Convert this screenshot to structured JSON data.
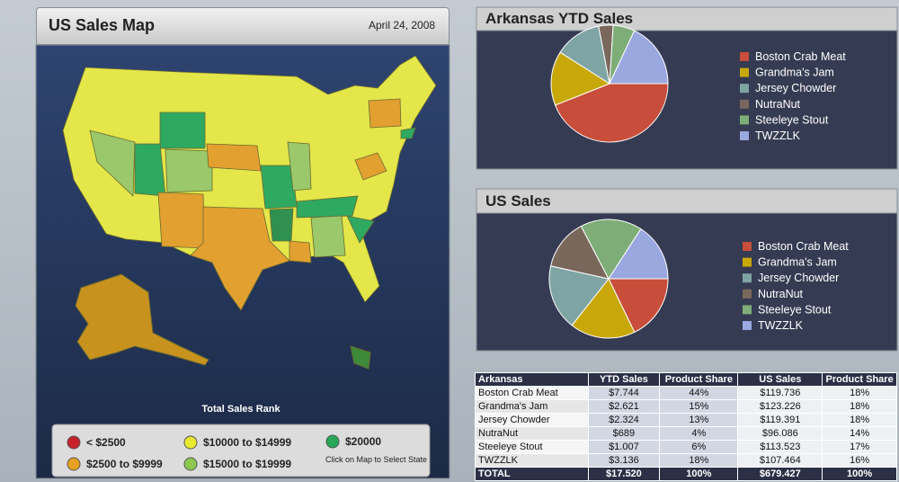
{
  "map_panel": {
    "title": "US Sales Map",
    "date": "April 24, 2008",
    "legend_title": "Total Sales Rank",
    "legend": [
      {
        "label": "< $2500",
        "color": "#c8202a"
      },
      {
        "label": "$2500 to $9999",
        "color": "#e8a020"
      },
      {
        "label": "$10000 to $14999",
        "color": "#e8e830"
      },
      {
        "label": "$15000 to $19999",
        "color": "#8cc850"
      },
      {
        "label": "$20000",
        "color": "#28a858"
      }
    ],
    "note": "Click on Map to Select State"
  },
  "chart_data": [
    {
      "type": "pie",
      "title": "Arkansas YTD Sales",
      "categories": [
        "Boston Crab Meat",
        "Grandma's Jam",
        "Jersey Chowder",
        "NutraNut",
        "Steeleye Stout",
        "TWZZLK"
      ],
      "colors": [
        "#c84d3a",
        "#c8a808",
        "#7fa4a4",
        "#7a675c",
        "#7ead78",
        "#9aa8e0"
      ],
      "values": [
        44,
        15,
        13,
        4,
        6,
        18
      ]
    },
    {
      "type": "pie",
      "title": "US Sales",
      "categories": [
        "Boston Crab Meat",
        "Grandma's Jam",
        "Jersey Chowder",
        "NutraNut",
        "Steeleye Stout",
        "TWZZLK"
      ],
      "colors": [
        "#c84d3a",
        "#c8a808",
        "#7fa4a4",
        "#7a675c",
        "#7ead78",
        "#9aa8e0"
      ],
      "values": [
        18,
        18,
        18,
        14,
        17,
        16
      ]
    }
  ],
  "table": {
    "header": [
      "Arkansas",
      "YTD Sales",
      "Product Share",
      "US Sales",
      "Product Share"
    ],
    "rows": [
      [
        "Boston Crab Meat",
        "$7.744",
        "44%",
        "$119.736",
        "18%"
      ],
      [
        "Grandma's Jam",
        "$2.621",
        "15%",
        "$123.226",
        "18%"
      ],
      [
        "Jersey Chowder",
        "$2.324",
        "13%",
        "$119.391",
        "18%"
      ],
      [
        "NutraNut",
        "$689",
        "4%",
        "$96.086",
        "14%"
      ],
      [
        "Steeleye Stout",
        "$1.007",
        "6%",
        "$113.523",
        "17%"
      ],
      [
        "TWZZLK",
        "$3.136",
        "18%",
        "$107.464",
        "16%"
      ]
    ],
    "total": [
      "TOTAL",
      "$17.520",
      "100%",
      "$679.427",
      "100%"
    ]
  }
}
